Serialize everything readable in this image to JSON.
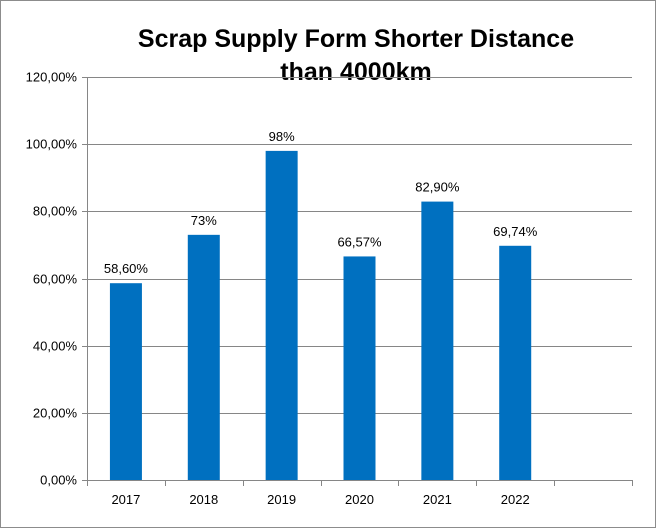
{
  "chart_data": {
    "type": "bar",
    "title_lines": [
      "Scrap Supply Form Shorter Distance",
      "than 4000km"
    ],
    "categories": [
      "2017",
      "2018",
      "2019",
      "2020",
      "2021",
      "2022",
      ""
    ],
    "values": [
      58.6,
      73,
      98,
      66.57,
      82.9,
      69.74,
      null
    ],
    "data_labels": [
      "58,60%",
      "73%",
      "98%",
      "66,57%",
      "82,90%",
      "69,74%",
      ""
    ],
    "y_tick_labels": [
      "0,00%",
      "20,00%",
      "40,00%",
      "60,00%",
      "80,00%",
      "100,00%",
      "120,00%"
    ],
    "ylim": [
      0,
      120
    ],
    "y_step": 20,
    "grid": true,
    "legend": "none",
    "bar_color": "#0070C0",
    "grid_color": "#868686"
  }
}
